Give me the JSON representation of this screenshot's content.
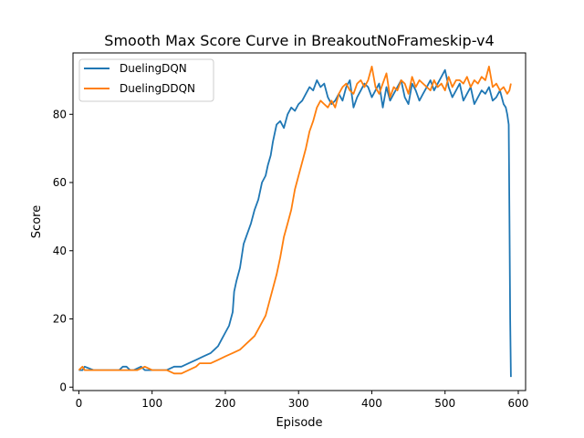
{
  "chart_data": {
    "type": "line",
    "title": "Smooth Max Score Curve in BreakoutNoFrameskip-v4",
    "xlabel": "Episode",
    "ylabel": "Score",
    "xlim": [
      -8,
      610
    ],
    "ylim": [
      -1,
      98
    ],
    "xticks": [
      0,
      100,
      200,
      300,
      400,
      500,
      600
    ],
    "yticks": [
      0,
      20,
      40,
      60,
      80
    ],
    "legend": "top-left",
    "grid": false,
    "series": [
      {
        "name": "DuelingDQN",
        "color": "#1f77b4",
        "x": [
          0,
          5,
          8,
          20,
          40,
          55,
          60,
          65,
          70,
          75,
          85,
          90,
          100,
          120,
          130,
          140,
          150,
          160,
          170,
          180,
          185,
          190,
          195,
          200,
          205,
          210,
          212,
          215,
          220,
          225,
          230,
          235,
          240,
          245,
          250,
          255,
          258,
          262,
          265,
          270,
          275,
          280,
          285,
          290,
          295,
          300,
          305,
          310,
          315,
          320,
          325,
          330,
          335,
          340,
          345,
          350,
          355,
          360,
          365,
          370,
          375,
          380,
          385,
          390,
          395,
          400,
          405,
          410,
          415,
          420,
          425,
          430,
          435,
          440,
          445,
          450,
          455,
          460,
          465,
          470,
          475,
          480,
          485,
          490,
          495,
          500,
          505,
          510,
          515,
          520,
          525,
          530,
          535,
          540,
          545,
          550,
          555,
          560,
          565,
          570,
          575,
          580,
          583,
          585,
          587,
          588,
          589,
          590
        ],
        "values": [
          5,
          5,
          6,
          5,
          5,
          5,
          6,
          6,
          5,
          5,
          6,
          5,
          5,
          5,
          6,
          6,
          7,
          8,
          9,
          10,
          11,
          12,
          14,
          16,
          18,
          22,
          28,
          31,
          35,
          42,
          45,
          48,
          52,
          55,
          60,
          62,
          65,
          68,
          72,
          77,
          78,
          76,
          80,
          82,
          81,
          83,
          84,
          86,
          88,
          87,
          90,
          88,
          89,
          85,
          83,
          84,
          86,
          84,
          88,
          90,
          82,
          85,
          87,
          89,
          88,
          85,
          87,
          89,
          82,
          88,
          84,
          86,
          88,
          90,
          85,
          83,
          89,
          87,
          84,
          86,
          88,
          90,
          87,
          89,
          91,
          93,
          88,
          85,
          87,
          89,
          84,
          86,
          88,
          83,
          85,
          87,
          86,
          88,
          84,
          85,
          87,
          83,
          82,
          80,
          77,
          50,
          20,
          3
        ]
      },
      {
        "name": "DuelingDDQN",
        "color": "#ff7f0e",
        "x": [
          0,
          5,
          8,
          20,
          40,
          55,
          60,
          70,
          80,
          90,
          100,
          110,
          120,
          130,
          140,
          150,
          160,
          165,
          170,
          180,
          190,
          200,
          210,
          220,
          230,
          240,
          245,
          250,
          255,
          260,
          265,
          270,
          275,
          280,
          285,
          290,
          295,
          300,
          305,
          310,
          315,
          320,
          325,
          330,
          335,
          340,
          345,
          350,
          355,
          360,
          365,
          370,
          375,
          380,
          385,
          390,
          395,
          400,
          405,
          410,
          415,
          420,
          425,
          430,
          435,
          440,
          445,
          450,
          455,
          460,
          465,
          470,
          475,
          480,
          485,
          490,
          495,
          500,
          505,
          510,
          515,
          520,
          525,
          530,
          535,
          540,
          545,
          550,
          555,
          560,
          565,
          570,
          575,
          580,
          585,
          588,
          590
        ],
        "values": [
          5,
          6,
          5,
          5,
          5,
          5,
          5,
          5,
          5,
          6,
          5,
          5,
          5,
          4,
          4,
          5,
          6,
          7,
          7,
          7,
          8,
          9,
          10,
          11,
          13,
          15,
          17,
          19,
          21,
          25,
          29,
          33,
          38,
          44,
          48,
          52,
          58,
          62,
          66,
          70,
          75,
          78,
          82,
          84,
          83,
          82,
          84,
          82,
          86,
          88,
          89,
          87,
          86,
          89,
          90,
          88,
          90,
          94,
          88,
          86,
          89,
          92,
          85,
          88,
          87,
          90,
          89,
          86,
          91,
          88,
          90,
          89,
          88,
          87,
          90,
          88,
          89,
          87,
          91,
          88,
          90,
          90,
          89,
          91,
          88,
          90,
          89,
          91,
          90,
          94,
          88,
          89,
          87,
          88,
          86,
          87,
          89
        ]
      }
    ]
  }
}
